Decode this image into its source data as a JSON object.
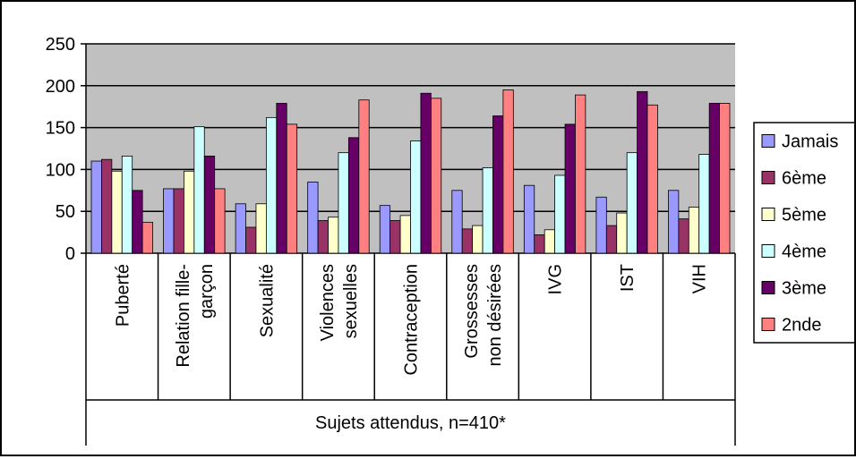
{
  "chart_data": {
    "type": "bar",
    "title": "",
    "xlabel": "Sujets attendus, n=410*",
    "ylabel": "",
    "ylim": [
      0,
      250
    ],
    "yticks": [
      0,
      50,
      100,
      150,
      200,
      250
    ],
    "grid": true,
    "legend_position": "right",
    "plot_background": "#c0c0c0",
    "categories": [
      [
        "Puberté"
      ],
      [
        "Relation fille-",
        "garçon"
      ],
      [
        "Sexualité"
      ],
      [
        "Violences",
        "sexuelles"
      ],
      [
        "Contraception"
      ],
      [
        "Grossesses",
        "non désirées"
      ],
      [
        "IVG"
      ],
      [
        "IST"
      ],
      [
        "VIH"
      ]
    ],
    "series": [
      {
        "name": "Jamais",
        "color": "#9999ff",
        "values": [
          110,
          77,
          59,
          85,
          57,
          75,
          81,
          67,
          75
        ]
      },
      {
        "name": "6ème",
        "color": "#993366",
        "values": [
          112,
          77,
          31,
          39,
          39,
          29,
          22,
          33,
          41
        ]
      },
      {
        "name": "5ème",
        "color": "#ffffcc",
        "values": [
          98,
          98,
          59,
          43,
          45,
          33,
          28,
          48,
          55
        ]
      },
      {
        "name": "4ème",
        "color": "#ccffff",
        "values": [
          116,
          151,
          162,
          120,
          134,
          102,
          93,
          120,
          118
        ]
      },
      {
        "name": "3ème",
        "color": "#660066",
        "values": [
          75,
          116,
          179,
          138,
          191,
          164,
          154,
          193,
          179
        ]
      },
      {
        "name": "2nde",
        "color": "#ff8080",
        "values": [
          37,
          77,
          154,
          183,
          185,
          195,
          189,
          177,
          179
        ]
      }
    ]
  }
}
